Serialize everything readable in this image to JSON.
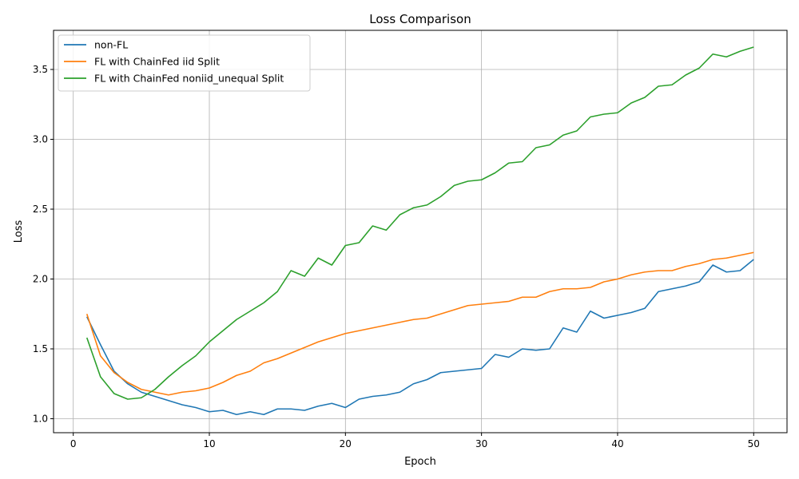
{
  "chart_data": {
    "type": "line",
    "title": "Loss Comparison",
    "xlabel": "Epoch",
    "ylabel": "Loss",
    "xlim": [
      -1.45,
      52.45
    ],
    "ylim": [
      0.9,
      3.78
    ],
    "xticks": [
      0,
      10,
      20,
      30,
      40,
      50
    ],
    "yticks": [
      1.0,
      1.5,
      2.0,
      2.5,
      3.0,
      3.5
    ],
    "grid": true,
    "legend_position": "upper-left",
    "x": [
      1,
      2,
      3,
      4,
      5,
      6,
      7,
      8,
      9,
      10,
      11,
      12,
      13,
      14,
      15,
      16,
      17,
      18,
      19,
      20,
      21,
      22,
      23,
      24,
      25,
      26,
      27,
      28,
      29,
      30,
      31,
      32,
      33,
      34,
      35,
      36,
      37,
      38,
      39,
      40,
      41,
      42,
      43,
      44,
      45,
      46,
      47,
      48,
      49,
      50
    ],
    "series": [
      {
        "name": "non-FL",
        "color": "#1f77b4",
        "values": [
          1.73,
          1.53,
          1.34,
          1.25,
          1.19,
          1.16,
          1.13,
          1.1,
          1.08,
          1.05,
          1.06,
          1.03,
          1.05,
          1.03,
          1.07,
          1.07,
          1.06,
          1.09,
          1.11,
          1.08,
          1.14,
          1.16,
          1.17,
          1.19,
          1.25,
          1.28,
          1.33,
          1.34,
          1.35,
          1.36,
          1.46,
          1.44,
          1.5,
          1.49,
          1.5,
          1.65,
          1.62,
          1.77,
          1.72,
          1.74,
          1.76,
          1.79,
          1.91,
          1.93,
          1.95,
          1.98,
          2.1,
          2.05,
          2.06,
          2.14
        ]
      },
      {
        "name": "FL with ChainFed iid Split",
        "color": "#ff7f0e",
        "values": [
          1.75,
          1.45,
          1.33,
          1.26,
          1.21,
          1.19,
          1.17,
          1.19,
          1.2,
          1.22,
          1.26,
          1.31,
          1.34,
          1.4,
          1.43,
          1.47,
          1.51,
          1.55,
          1.58,
          1.61,
          1.63,
          1.65,
          1.67,
          1.69,
          1.71,
          1.72,
          1.75,
          1.78,
          1.81,
          1.82,
          1.83,
          1.84,
          1.87,
          1.87,
          1.91,
          1.93,
          1.93,
          1.94,
          1.98,
          2.0,
          2.03,
          2.05,
          2.06,
          2.06,
          2.09,
          2.11,
          2.14,
          2.15,
          2.17,
          2.19
        ]
      },
      {
        "name": "FL with ChainFed noniid_unequal Split",
        "color": "#2ca02c",
        "values": [
          1.58,
          1.3,
          1.18,
          1.14,
          1.15,
          1.21,
          1.3,
          1.38,
          1.45,
          1.55,
          1.63,
          1.71,
          1.77,
          1.83,
          1.91,
          2.06,
          2.02,
          2.15,
          2.1,
          2.24,
          2.26,
          2.38,
          2.35,
          2.46,
          2.51,
          2.53,
          2.59,
          2.67,
          2.7,
          2.71,
          2.76,
          2.83,
          2.84,
          2.94,
          2.96,
          3.03,
          3.06,
          3.16,
          3.18,
          3.19,
          3.26,
          3.3,
          3.38,
          3.39,
          3.46,
          3.51,
          3.61,
          3.59,
          3.63,
          3.66
        ]
      }
    ]
  }
}
